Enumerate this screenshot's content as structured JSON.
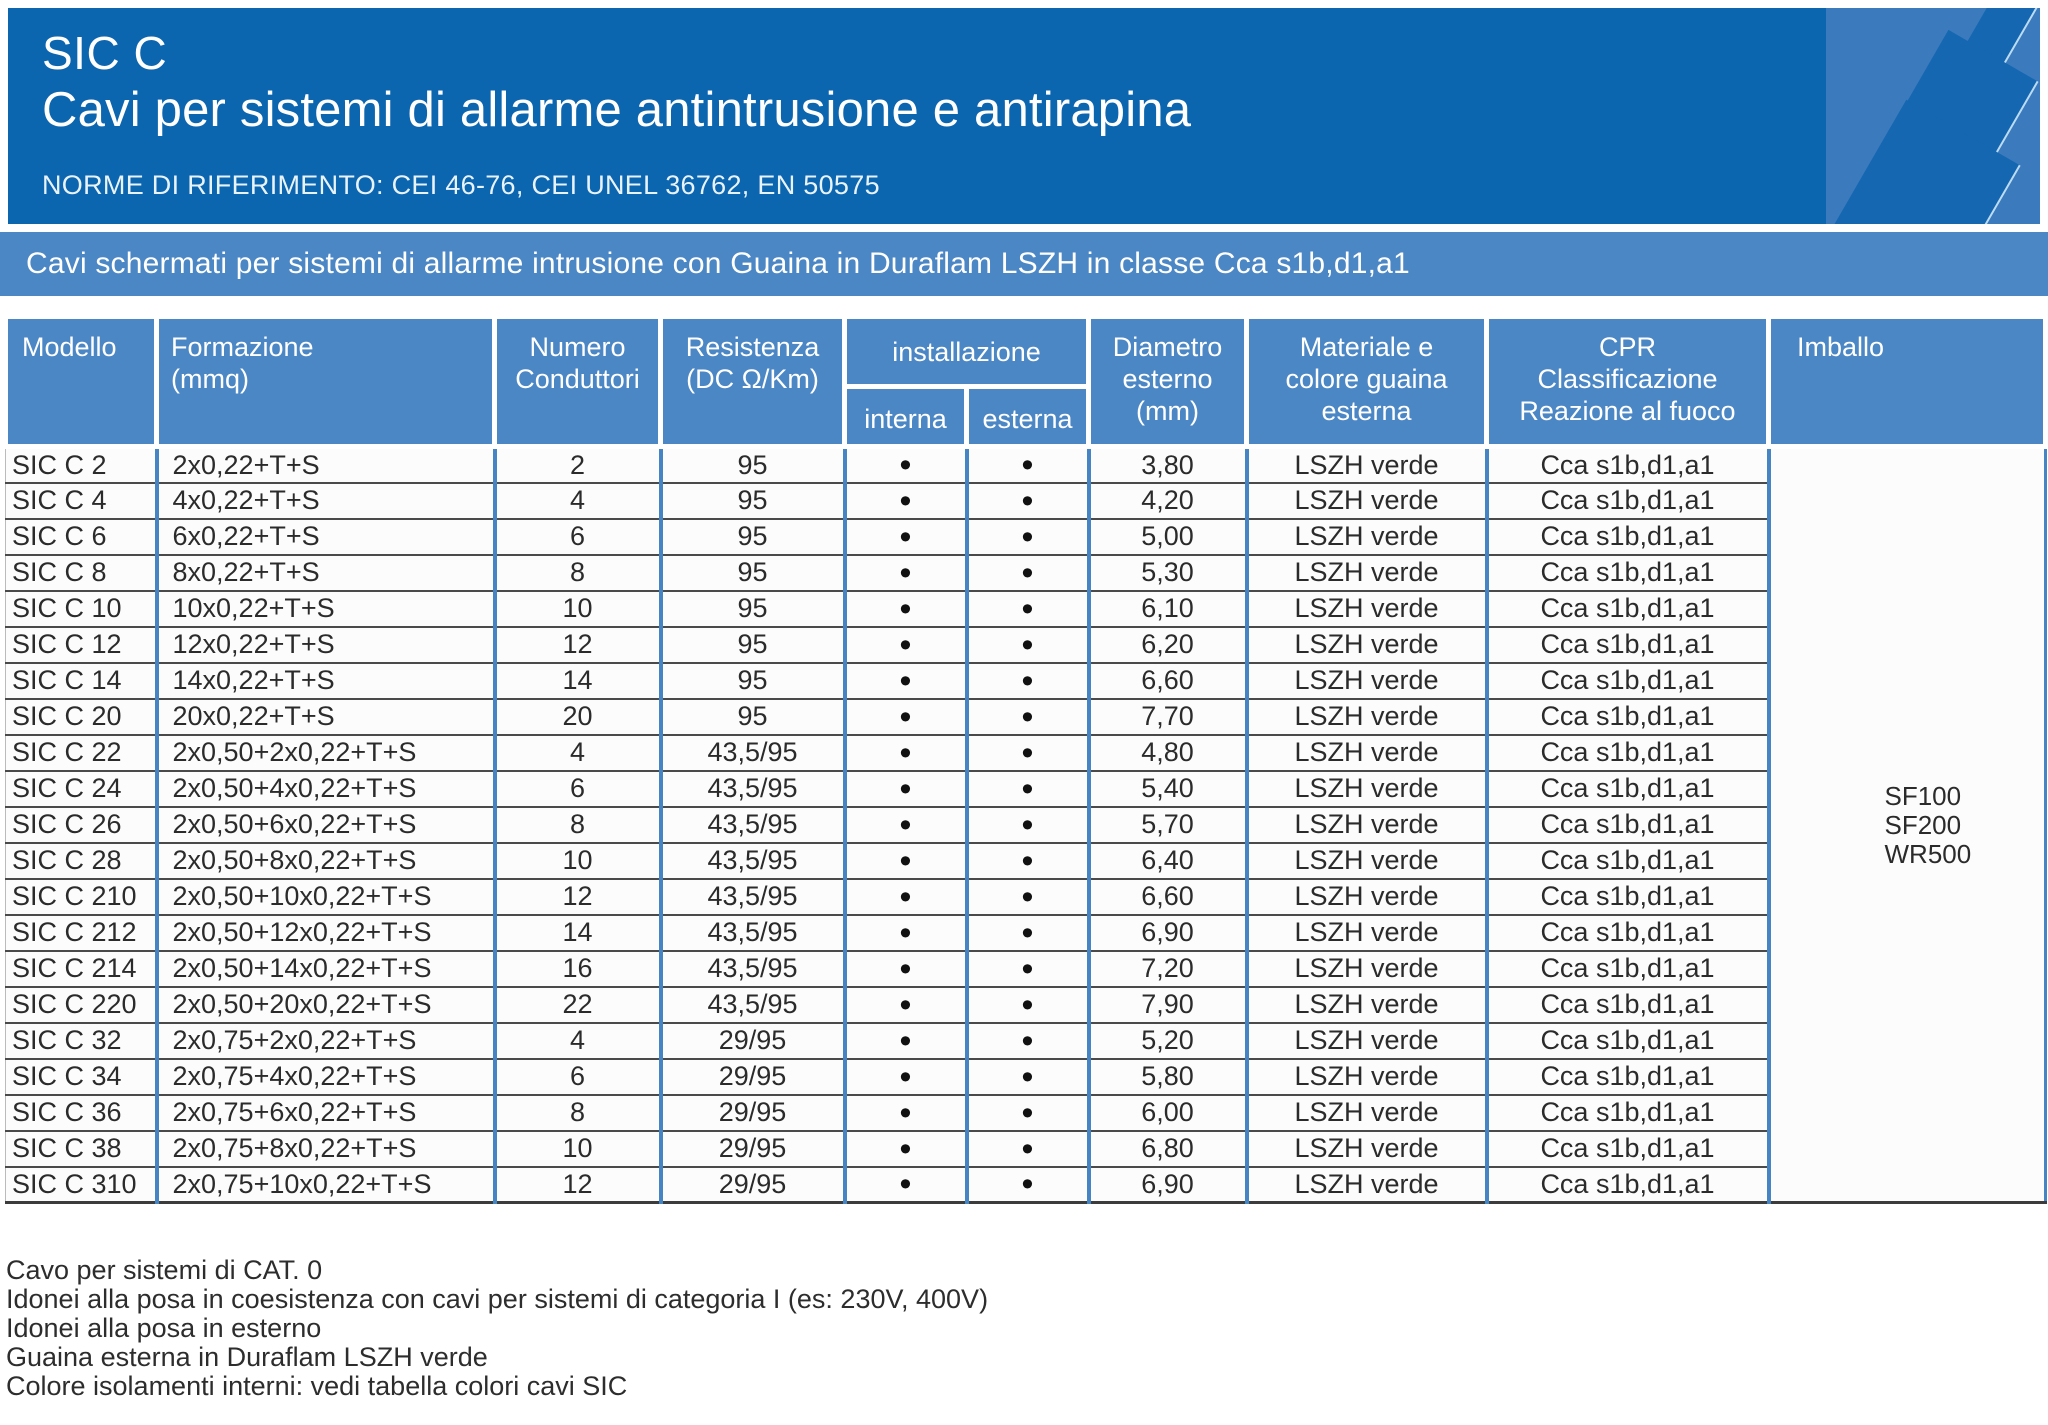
{
  "header": {
    "product_code": "SIC C",
    "title": "Cavi per sistemi di allarme antintrusione e antirapina",
    "norms": "NORME DI RIFERIMENTO: CEI 46-76, CEI UNEL 36762, EN 50575"
  },
  "banner": {
    "text": "Cavi schermati per sistemi di allarme intrusione con Guaina in Duraflam LSZH in classe Cca s1b,d1,a1"
  },
  "colors": {
    "top_banner": "#0b65af",
    "sub_banner": "#4c87c5",
    "table_header": "#4c87c5",
    "vertical_border": "#4585c4",
    "row_border": "#4a4a4a"
  },
  "table": {
    "header": {
      "modello": "Modello",
      "formazione": "Formazione\n(mmq)",
      "numero": "Numero\nConduttori",
      "resistenza": "Resistenza\n(DC Ω/Km)",
      "installazione": "installazione",
      "interna": "interna",
      "esterna": "esterna",
      "diametro": "Diametro\nesterno\n(mm)",
      "materiale": "Materiale e\ncolore guaina\nesterna",
      "cpr": "CPR\nClassificazione\nReazione al fuoco",
      "imballo": "Imballo"
    },
    "bullet": "•",
    "imballo_values": [
      "SF100",
      "SF200",
      "WR500"
    ],
    "rows": [
      {
        "modello": "SIC C 2",
        "formazione": "2x0,22+T+S",
        "conduttori": "2",
        "resistenza": "95",
        "interna": true,
        "esterna": true,
        "diametro": "3,80",
        "materiale": "LSZH verde",
        "cpr": "Cca s1b,d1,a1"
      },
      {
        "modello": "SIC C 4",
        "formazione": "4x0,22+T+S",
        "conduttori": "4",
        "resistenza": "95",
        "interna": true,
        "esterna": true,
        "diametro": "4,20",
        "materiale": "LSZH verde",
        "cpr": "Cca s1b,d1,a1"
      },
      {
        "modello": "SIC C 6",
        "formazione": "6x0,22+T+S",
        "conduttori": "6",
        "resistenza": "95",
        "interna": true,
        "esterna": true,
        "diametro": "5,00",
        "materiale": "LSZH verde",
        "cpr": "Cca s1b,d1,a1"
      },
      {
        "modello": "SIC C 8",
        "formazione": "8x0,22+T+S",
        "conduttori": "8",
        "resistenza": "95",
        "interna": true,
        "esterna": true,
        "diametro": "5,30",
        "materiale": "LSZH verde",
        "cpr": "Cca s1b,d1,a1"
      },
      {
        "modello": "SIC C 10",
        "formazione": "10x0,22+T+S",
        "conduttori": "10",
        "resistenza": "95",
        "interna": true,
        "esterna": true,
        "diametro": "6,10",
        "materiale": "LSZH verde",
        "cpr": "Cca s1b,d1,a1"
      },
      {
        "modello": "SIC C 12",
        "formazione": "12x0,22+T+S",
        "conduttori": "12",
        "resistenza": "95",
        "interna": true,
        "esterna": true,
        "diametro": "6,20",
        "materiale": "LSZH verde",
        "cpr": "Cca s1b,d1,a1"
      },
      {
        "modello": "SIC C 14",
        "formazione": "14x0,22+T+S",
        "conduttori": "14",
        "resistenza": "95",
        "interna": true,
        "esterna": true,
        "diametro": "6,60",
        "materiale": "LSZH verde",
        "cpr": "Cca s1b,d1,a1"
      },
      {
        "modello": "SIC C 20",
        "formazione": "20x0,22+T+S",
        "conduttori": "20",
        "resistenza": "95",
        "interna": true,
        "esterna": true,
        "diametro": "7,70",
        "materiale": "LSZH verde",
        "cpr": "Cca s1b,d1,a1"
      },
      {
        "modello": "SIC C 22",
        "formazione": "2x0,50+2x0,22+T+S",
        "conduttori": "4",
        "resistenza": "43,5/95",
        "interna": true,
        "esterna": true,
        "diametro": "4,80",
        "materiale": "LSZH verde",
        "cpr": "Cca s1b,d1,a1"
      },
      {
        "modello": "SIC C 24",
        "formazione": "2x0,50+4x0,22+T+S",
        "conduttori": "6",
        "resistenza": "43,5/95",
        "interna": true,
        "esterna": true,
        "diametro": "5,40",
        "materiale": "LSZH verde",
        "cpr": "Cca s1b,d1,a1"
      },
      {
        "modello": "SIC C 26",
        "formazione": "2x0,50+6x0,22+T+S",
        "conduttori": "8",
        "resistenza": "43,5/95",
        "interna": true,
        "esterna": true,
        "diametro": "5,70",
        "materiale": "LSZH verde",
        "cpr": "Cca s1b,d1,a1"
      },
      {
        "modello": "SIC C 28",
        "formazione": "2x0,50+8x0,22+T+S",
        "conduttori": "10",
        "resistenza": "43,5/95",
        "interna": true,
        "esterna": true,
        "diametro": "6,40",
        "materiale": "LSZH verde",
        "cpr": "Cca s1b,d1,a1"
      },
      {
        "modello": "SIC C 210",
        "formazione": "2x0,50+10x0,22+T+S",
        "conduttori": "12",
        "resistenza": "43,5/95",
        "interna": true,
        "esterna": true,
        "diametro": "6,60",
        "materiale": "LSZH verde",
        "cpr": "Cca s1b,d1,a1"
      },
      {
        "modello": "SIC C 212",
        "formazione": "2x0,50+12x0,22+T+S",
        "conduttori": "14",
        "resistenza": "43,5/95",
        "interna": true,
        "esterna": true,
        "diametro": "6,90",
        "materiale": "LSZH verde",
        "cpr": "Cca s1b,d1,a1"
      },
      {
        "modello": "SIC C 214",
        "formazione": "2x0,50+14x0,22+T+S",
        "conduttori": "16",
        "resistenza": "43,5/95",
        "interna": true,
        "esterna": true,
        "diametro": "7,20",
        "materiale": "LSZH verde",
        "cpr": "Cca s1b,d1,a1"
      },
      {
        "modello": "SIC C 220",
        "formazione": "2x0,50+20x0,22+T+S",
        "conduttori": "22",
        "resistenza": "43,5/95",
        "interna": true,
        "esterna": true,
        "diametro": "7,90",
        "materiale": "LSZH verde",
        "cpr": "Cca s1b,d1,a1"
      },
      {
        "modello": "SIC C 32",
        "formazione": "2x0,75+2x0,22+T+S",
        "conduttori": "4",
        "resistenza": "29/95",
        "interna": true,
        "esterna": true,
        "diametro": "5,20",
        "materiale": "LSZH verde",
        "cpr": "Cca s1b,d1,a1"
      },
      {
        "modello": "SIC C 34",
        "formazione": "2x0,75+4x0,22+T+S",
        "conduttori": "6",
        "resistenza": "29/95",
        "interna": true,
        "esterna": true,
        "diametro": "5,80",
        "materiale": "LSZH verde",
        "cpr": "Cca s1b,d1,a1"
      },
      {
        "modello": "SIC C 36",
        "formazione": "2x0,75+6x0,22+T+S",
        "conduttori": "8",
        "resistenza": "29/95",
        "interna": true,
        "esterna": true,
        "diametro": "6,00",
        "materiale": "LSZH verde",
        "cpr": "Cca s1b,d1,a1"
      },
      {
        "modello": "SIC C 38",
        "formazione": "2x0,75+8x0,22+T+S",
        "conduttori": "10",
        "resistenza": "29/95",
        "interna": true,
        "esterna": true,
        "diametro": "6,80",
        "materiale": "LSZH verde",
        "cpr": "Cca s1b,d1,a1"
      },
      {
        "modello": "SIC C 310",
        "formazione": "2x0,75+10x0,22+T+S",
        "conduttori": "12",
        "resistenza": "29/95",
        "interna": true,
        "esterna": true,
        "diametro": "6,90",
        "materiale": "LSZH verde",
        "cpr": "Cca s1b,d1,a1"
      }
    ]
  },
  "notes": [
    "Cavo per sistemi di CAT. 0",
    "Idonei alla posa in coesistenza con cavi per sistemi di categoria I (es: 230V, 400V)",
    "Idonei alla posa in esterno",
    "Guaina esterna in Duraflam LSZH verde",
    "Colore isolamenti interni: vedi tabella colori cavi SIC"
  ]
}
